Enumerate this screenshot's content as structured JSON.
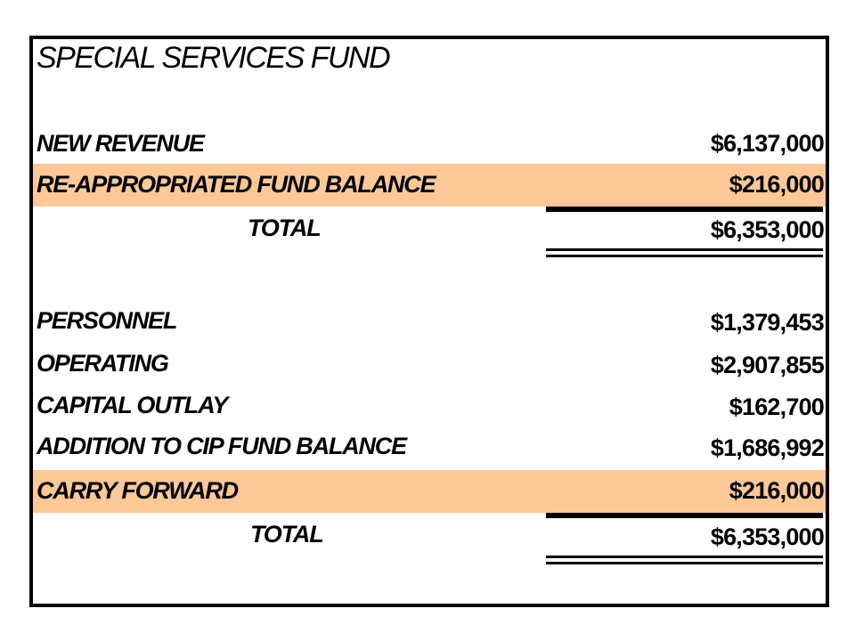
{
  "title": "SPECIAL SERVICES FUND",
  "highlight_color": "#fcc898",
  "revenue": {
    "rows": [
      {
        "label": "NEW REVENUE",
        "amount": "$6,137,000"
      },
      {
        "label": "RE-APPROPRIATED FUND BALANCE",
        "amount": "$216,000"
      }
    ],
    "total_label": "TOTAL",
    "total_amount": "$6,353,000"
  },
  "expenditures": {
    "rows": [
      {
        "label": "PERSONNEL",
        "amount": "$1,379,453"
      },
      {
        "label": "OPERATING",
        "amount": "$2,907,855"
      },
      {
        "label": "CAPITAL OUTLAY",
        "amount": "$162,700"
      },
      {
        "label": "ADDITION TO CIP FUND BALANCE",
        "amount": "$1,686,992"
      },
      {
        "label": "CARRY FORWARD",
        "amount": "$216,000"
      }
    ],
    "total_label": "TOTAL",
    "total_amount": "$6,353,000"
  }
}
